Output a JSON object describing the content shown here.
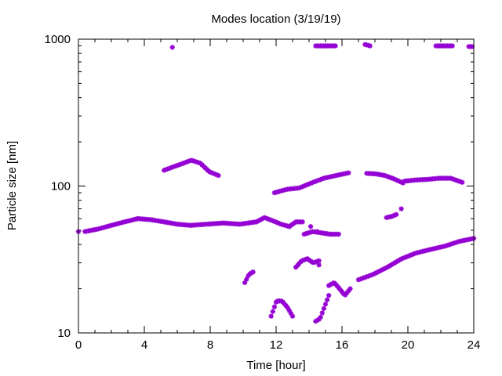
{
  "chart_data": {
    "type": "scatter",
    "title": "Modes location (3/19/19)",
    "xlabel": "Time [hour]",
    "ylabel": "Particle size [nm]",
    "xlim": [
      0,
      24
    ],
    "ylim": [
      10,
      1000
    ],
    "yscale": "log",
    "xticks": [
      0,
      4,
      8,
      12,
      16,
      20,
      24
    ],
    "xtick_labels": [
      "0",
      "4",
      "8",
      "12",
      "16",
      "20",
      "24"
    ],
    "yticks": [
      10,
      100,
      1000
    ],
    "ytick_labels": [
      "10",
      "100",
      "1000"
    ],
    "grid": false,
    "legend": "none",
    "marker_color": "#9400D3",
    "segments": [
      {
        "x0": 0.0,
        "x1": 0.0,
        "y": [
          49
        ]
      },
      {
        "x0": 0.4,
        "x1": 3.6,
        "y": [
          49,
          51,
          54,
          57,
          60
        ]
      },
      {
        "x0": 3.6,
        "x1": 6.8,
        "y": [
          60,
          59,
          57,
          55,
          54
        ]
      },
      {
        "x0": 6.8,
        "x1": 10.8,
        "y": [
          54,
          55,
          56,
          55,
          57
        ]
      },
      {
        "x0": 10.8,
        "x1": 12.8,
        "y": [
          57,
          61,
          58,
          55,
          53
        ]
      },
      {
        "x0": 12.8,
        "x1": 13.6,
        "y": [
          53,
          57,
          57
        ]
      },
      {
        "x0": 13.7,
        "x1": 15.8,
        "y": [
          47,
          49,
          48,
          47,
          47
        ]
      },
      {
        "x0": 5.2,
        "x1": 8.5,
        "y": [
          128,
          135,
          142,
          150,
          143,
          125,
          118
        ]
      },
      {
        "x0": 11.9,
        "x1": 16.4,
        "y": [
          90,
          95,
          97,
          105,
          113,
          118,
          123
        ]
      },
      {
        "x0": 17.5,
        "x1": 19.7,
        "y": [
          122,
          121,
          118,
          112,
          105
        ]
      },
      {
        "x0": 19.8,
        "x1": 23.3,
        "y": [
          108,
          110,
          111,
          113,
          113,
          106
        ]
      },
      {
        "x0": 18.7,
        "x1": 19.3,
        "y": [
          61,
          62,
          64
        ]
      },
      {
        "x0": 17.0,
        "x1": 24.0,
        "y": [
          23,
          25,
          28,
          32,
          35,
          37,
          39,
          42,
          44
        ]
      },
      {
        "x0": 10.1,
        "x1": 10.6,
        "y": [
          22,
          25,
          26
        ]
      },
      {
        "x0": 11.7,
        "x1": 13.0,
        "y": [
          13,
          16.5,
          16.5,
          15,
          13
        ]
      },
      {
        "x0": 13.2,
        "x1": 14.6,
        "y": [
          28,
          31,
          32,
          30,
          31
        ]
      },
      {
        "x0": 14.4,
        "x1": 15.2,
        "y": [
          12,
          12.5,
          15,
          18
        ]
      },
      {
        "x0": 15.2,
        "x1": 16.5,
        "y": [
          21,
          22,
          20,
          18,
          20
        ]
      },
      {
        "x0": 14.4,
        "x1": 15.6,
        "y": [
          900,
          900,
          900
        ]
      },
      {
        "x0": 17.4,
        "x1": 17.7,
        "y": [
          920,
          900
        ]
      },
      {
        "x0": 21.7,
        "x1": 22.7,
        "y": [
          900,
          900,
          900
        ]
      },
      {
        "x0": 23.7,
        "x1": 23.9,
        "y": [
          890,
          890
        ]
      }
    ],
    "points": [
      {
        "x": 5.7,
        "y": 880
      },
      {
        "x": 19.6,
        "y": 70
      },
      {
        "x": 14.1,
        "y": 53
      },
      {
        "x": 14.5,
        "y": 49
      },
      {
        "x": 14.6,
        "y": 29
      }
    ]
  }
}
